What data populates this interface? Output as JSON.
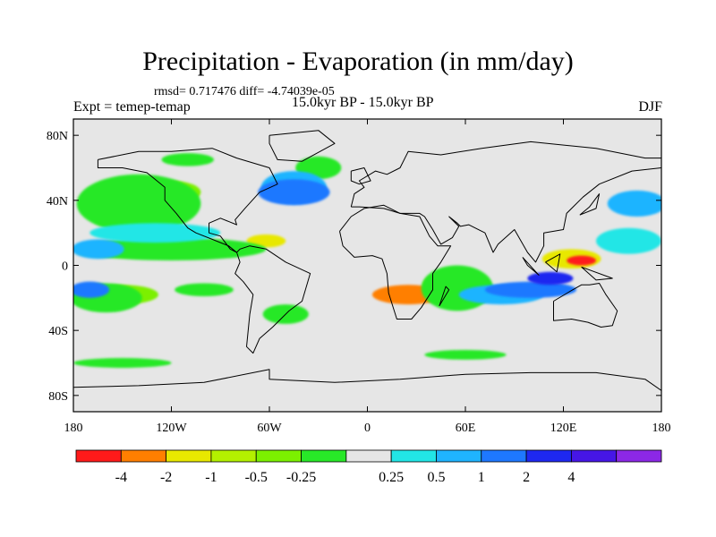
{
  "title": "Precipitation - Evaporation (in mm/day)",
  "stats": "rmsd= 0.717476 diff= -4.74039e-05",
  "expt_label": "Expt = temep-temap",
  "period": "15.0kyr BP - 15.0kyr BP",
  "season": "DJF",
  "map": {
    "lat_ticks": [
      {
        "value": 80,
        "label": "80N"
      },
      {
        "value": 40,
        "label": "40N"
      },
      {
        "value": 0,
        "label": "0"
      },
      {
        "value": -40,
        "label": "40S"
      },
      {
        "value": -80,
        "label": "80S"
      }
    ],
    "lon_ticks": [
      {
        "value": -180,
        "label": "180"
      },
      {
        "value": -120,
        "label": "120W"
      },
      {
        "value": -60,
        "label": "60W"
      },
      {
        "value": 0,
        "label": "0"
      },
      {
        "value": 60,
        "label": "60E"
      },
      {
        "value": 120,
        "label": "120E"
      },
      {
        "value": 180,
        "label": "180"
      }
    ]
  },
  "colorbar": {
    "colors": [
      "#ff1a1a",
      "#ff7f00",
      "#e8e800",
      "#b4f000",
      "#7cf000",
      "#28e828",
      "#e6e6e6",
      "#22e6e6",
      "#1fb4ff",
      "#1e78ff",
      "#1e28f0",
      "#4616e6",
      "#8c28e6"
    ],
    "labels": [
      "-4",
      "-2",
      "-1",
      "-0.5",
      "-0.25",
      "0.25",
      "0.5",
      "1",
      "2",
      "4"
    ]
  },
  "field": [
    {
      "c": 1,
      "lon": 25,
      "lat": -18,
      "rx": 22,
      "ry": 6
    },
    {
      "c": 2,
      "lon": 125,
      "lat": 4,
      "rx": 18,
      "ry": 6
    },
    {
      "c": 0,
      "lon": 131,
      "lat": 3,
      "rx": 9,
      "ry": 3
    },
    {
      "c": 2,
      "lon": -62,
      "lat": 15,
      "rx": 12,
      "ry": 4
    },
    {
      "c": 3,
      "lon": -140,
      "lat": 33,
      "rx": 22,
      "ry": 8
    },
    {
      "c": 3,
      "lon": -150,
      "lat": 8,
      "rx": 28,
      "ry": 3
    },
    {
      "c": 3,
      "lon": 52,
      "lat": -12,
      "rx": 18,
      "ry": 8
    },
    {
      "c": 4,
      "lon": -120,
      "lat": 45,
      "rx": 18,
      "ry": 7
    },
    {
      "c": 4,
      "lon": -150,
      "lat": -18,
      "rx": 22,
      "ry": 6
    },
    {
      "c": 5,
      "lon": -140,
      "lat": 38,
      "rx": 38,
      "ry": 18
    },
    {
      "c": 5,
      "lon": -120,
      "lat": 10,
      "rx": 58,
      "ry": 7
    },
    {
      "c": 5,
      "lon": -160,
      "lat": -20,
      "rx": 22,
      "ry": 9
    },
    {
      "c": 5,
      "lon": 55,
      "lat": -14,
      "rx": 22,
      "ry": 14
    },
    {
      "c": 5,
      "lon": -30,
      "lat": 60,
      "rx": 14,
      "ry": 7
    },
    {
      "c": 5,
      "lon": -50,
      "lat": -30,
      "rx": 14,
      "ry": 6
    },
    {
      "c": 5,
      "lon": -100,
      "lat": -15,
      "rx": 18,
      "ry": 4
    },
    {
      "c": 5,
      "lon": -150,
      "lat": -60,
      "rx": 30,
      "ry": 3
    },
    {
      "c": 5,
      "lon": 60,
      "lat": -55,
      "rx": 25,
      "ry": 3
    },
    {
      "c": 5,
      "lon": -110,
      "lat": 65,
      "rx": 16,
      "ry": 4
    },
    {
      "c": 6,
      "lon": 140,
      "lat": 30,
      "rx": 12,
      "ry": 6
    },
    {
      "c": 7,
      "lon": 160,
      "lat": 15,
      "rx": 20,
      "ry": 8
    },
    {
      "c": 7,
      "lon": -130,
      "lat": 20,
      "rx": 40,
      "ry": 6
    },
    {
      "c": 8,
      "lon": 165,
      "lat": 38,
      "rx": 18,
      "ry": 8
    },
    {
      "c": 8,
      "lon": -165,
      "lat": 10,
      "rx": 16,
      "ry": 6
    },
    {
      "c": 8,
      "lon": -45,
      "lat": 48,
      "rx": 20,
      "ry": 10
    },
    {
      "c": 8,
      "lon": 82,
      "lat": -18,
      "rx": 26,
      "ry": 6
    },
    {
      "c": 9,
      "lon": -45,
      "lat": 45,
      "rx": 22,
      "ry": 8
    },
    {
      "c": 9,
      "lon": 100,
      "lat": -15,
      "rx": 28,
      "ry": 5
    },
    {
      "c": 9,
      "lon": -170,
      "lat": -15,
      "rx": 12,
      "ry": 5
    },
    {
      "c": 10,
      "lon": 112,
      "lat": -8,
      "rx": 14,
      "ry": 4
    }
  ],
  "coast": [
    [
      [
        -165,
        65
      ],
      [
        -140,
        70
      ],
      [
        -120,
        70
      ],
      [
        -95,
        72
      ],
      [
        -80,
        66
      ],
      [
        -60,
        60
      ],
      [
        -55,
        50
      ],
      [
        -66,
        45
      ],
      [
        -75,
        35
      ],
      [
        -81,
        28
      ],
      [
        -80,
        25
      ],
      [
        -90,
        29
      ],
      [
        -97,
        26
      ],
      [
        -97,
        20
      ],
      [
        -90,
        18
      ],
      [
        -84,
        10
      ],
      [
        -80,
        8
      ],
      [
        -78,
        10
      ],
      [
        -72,
        12
      ],
      [
        -62,
        10
      ],
      [
        -50,
        2
      ],
      [
        -35,
        -5
      ],
      [
        -40,
        -22
      ],
      [
        -48,
        -28
      ],
      [
        -58,
        -38
      ],
      [
        -66,
        -45
      ],
      [
        -70,
        -54
      ],
      [
        -74,
        -50
      ],
      [
        -72,
        -30
      ],
      [
        -70,
        -18
      ],
      [
        -76,
        -10
      ],
      [
        -81,
        -5
      ],
      [
        -78,
        2
      ],
      [
        -80,
        8
      ],
      [
        -85,
        12
      ],
      [
        -95,
        16
      ],
      [
        -105,
        20
      ],
      [
        -110,
        23
      ],
      [
        -117,
        32
      ],
      [
        -124,
        40
      ],
      [
        -124,
        48
      ],
      [
        -135,
        57
      ],
      [
        -150,
        60
      ],
      [
        -165,
        60
      ],
      [
        -165,
        65
      ]
    ],
    [
      [
        -10,
        36
      ],
      [
        -8,
        44
      ],
      [
        -2,
        48
      ],
      [
        -5,
        52
      ],
      [
        5,
        58
      ],
      [
        12,
        56
      ],
      [
        20,
        60
      ],
      [
        25,
        70
      ],
      [
        45,
        68
      ],
      [
        70,
        72
      ],
      [
        100,
        76
      ],
      [
        140,
        72
      ],
      [
        170,
        66
      ],
      [
        180,
        66
      ],
      [
        180,
        60
      ],
      [
        162,
        58
      ],
      [
        142,
        50
      ],
      [
        132,
        42
      ],
      [
        122,
        32
      ],
      [
        120,
        22
      ],
      [
        108,
        20
      ],
      [
        108,
        12
      ],
      [
        103,
        2
      ],
      [
        98,
        8
      ],
      [
        90,
        22
      ],
      [
        80,
        13
      ],
      [
        77,
        8
      ],
      [
        72,
        20
      ],
      [
        62,
        25
      ],
      [
        57,
        24
      ],
      [
        55,
        26
      ],
      [
        50,
        30
      ],
      [
        56,
        24
      ],
      [
        52,
        17
      ],
      [
        45,
        13
      ],
      [
        40,
        22
      ],
      [
        35,
        30
      ],
      [
        32,
        32
      ],
      [
        20,
        32
      ],
      [
        10,
        35
      ],
      [
        -5,
        36
      ],
      [
        -10,
        36
      ]
    ],
    [
      [
        -17,
        21
      ],
      [
        -15,
        12
      ],
      [
        -8,
        5
      ],
      [
        3,
        6
      ],
      [
        9,
        4
      ],
      [
        12,
        -5
      ],
      [
        13,
        -17
      ],
      [
        18,
        -33
      ],
      [
        27,
        -33
      ],
      [
        33,
        -26
      ],
      [
        40,
        -15
      ],
      [
        40,
        -5
      ],
      [
        45,
        2
      ],
      [
        51,
        12
      ],
      [
        43,
        12
      ],
      [
        38,
        18
      ],
      [
        32,
        30
      ],
      [
        20,
        32
      ],
      [
        10,
        37
      ],
      [
        -2,
        35
      ],
      [
        -10,
        30
      ],
      [
        -17,
        21
      ]
    ],
    [
      [
        114,
        -22
      ],
      [
        114,
        -34
      ],
      [
        125,
        -33
      ],
      [
        135,
        -35
      ],
      [
        143,
        -38
      ],
      [
        150,
        -37
      ],
      [
        153,
        -28
      ],
      [
        146,
        -18
      ],
      [
        142,
        -11
      ],
      [
        136,
        -12
      ],
      [
        131,
        -12
      ],
      [
        124,
        -16
      ],
      [
        114,
        -22
      ]
    ],
    [
      [
        -180,
        -75
      ],
      [
        -140,
        -74
      ],
      [
        -100,
        -72
      ],
      [
        -60,
        -64
      ],
      [
        -60,
        -70
      ],
      [
        -20,
        -72
      ],
      [
        20,
        -70
      ],
      [
        60,
        -67
      ],
      [
        100,
        -66
      ],
      [
        140,
        -66
      ],
      [
        170,
        -70
      ],
      [
        180,
        -77
      ]
    ],
    [
      [
        -60,
        80
      ],
      [
        -30,
        83
      ],
      [
        -20,
        75
      ],
      [
        -40,
        64
      ],
      [
        -55,
        65
      ],
      [
        -60,
        75
      ],
      [
        -60,
        80
      ]
    ],
    [
      [
        -10,
        58
      ],
      [
        -2,
        60
      ],
      [
        2,
        52
      ],
      [
        -5,
        50
      ],
      [
        -10,
        52
      ],
      [
        -10,
        58
      ]
    ],
    [
      [
        130,
        31
      ],
      [
        140,
        35
      ],
      [
        142,
        44
      ],
      [
        136,
        36
      ],
      [
        130,
        31
      ]
    ],
    [
      [
        95,
        5
      ],
      [
        105,
        -6
      ],
      [
        98,
        0
      ],
      [
        95,
        5
      ]
    ],
    [
      [
        109,
        2
      ],
      [
        118,
        7
      ],
      [
        116,
        -4
      ],
      [
        109,
        2
      ]
    ],
    [
      [
        131,
        -1
      ],
      [
        150,
        -8
      ],
      [
        140,
        -9
      ],
      [
        131,
        -1
      ]
    ],
    [
      [
        44,
        -25
      ],
      [
        50,
        -15
      ],
      [
        48,
        -13
      ],
      [
        44,
        -25
      ]
    ]
  ]
}
